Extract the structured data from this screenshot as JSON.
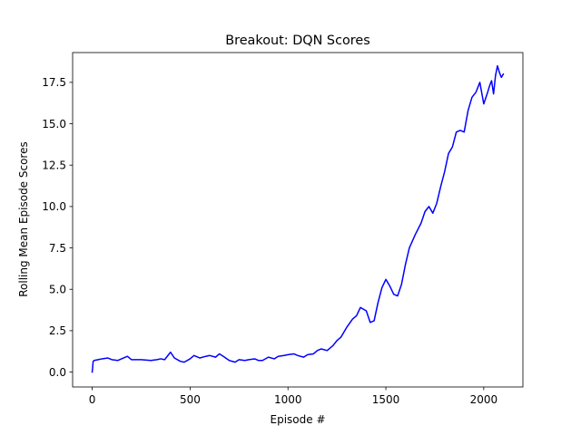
{
  "chart_data": {
    "type": "line",
    "title": "Breakout: DQN Scores",
    "xlabel": "Episode #",
    "ylabel": "Rolling Mean Episode Scores",
    "xlim": [
      -100,
      2200
    ],
    "ylim": [
      -0.9,
      19.3
    ],
    "xticks": [
      0,
      500,
      1000,
      1500,
      2000
    ],
    "yticks": [
      0.0,
      2.5,
      5.0,
      7.5,
      10.0,
      12.5,
      15.0,
      17.5
    ],
    "xtick_labels": [
      "0",
      "500",
      "1000",
      "1500",
      "2000"
    ],
    "ytick_labels": [
      "0.0",
      "2.5",
      "5.0",
      "7.5",
      "10.0",
      "12.5",
      "15.0",
      "17.5"
    ],
    "grid": false,
    "legend": "none",
    "series": [
      {
        "color": "#0000ff",
        "x": [
          0,
          5,
          10,
          30,
          50,
          80,
          100,
          130,
          150,
          180,
          200,
          250,
          300,
          330,
          350,
          370,
          400,
          420,
          450,
          470,
          500,
          520,
          550,
          580,
          600,
          630,
          650,
          670,
          700,
          730,
          750,
          780,
          800,
          830,
          850,
          870,
          900,
          930,
          950,
          980,
          1000,
          1030,
          1050,
          1080,
          1100,
          1130,
          1150,
          1170,
          1200,
          1230,
          1250,
          1270,
          1300,
          1330,
          1350,
          1370,
          1400,
          1420,
          1440,
          1460,
          1480,
          1500,
          1520,
          1540,
          1560,
          1580,
          1600,
          1620,
          1650,
          1680,
          1700,
          1720,
          1740,
          1760,
          1780,
          1800,
          1820,
          1840,
          1860,
          1880,
          1900,
          1920,
          1940,
          1960,
          1980,
          2000,
          2020,
          2030,
          2040,
          2050,
          2060,
          2070,
          2080,
          2090,
          2100
        ],
        "y": [
          0.0,
          0.65,
          0.7,
          0.75,
          0.8,
          0.85,
          0.75,
          0.7,
          0.8,
          0.95,
          0.75,
          0.75,
          0.7,
          0.75,
          0.8,
          0.75,
          1.2,
          0.85,
          0.65,
          0.6,
          0.8,
          1.0,
          0.85,
          0.95,
          1.0,
          0.9,
          1.1,
          0.95,
          0.7,
          0.6,
          0.75,
          0.7,
          0.75,
          0.8,
          0.7,
          0.7,
          0.9,
          0.8,
          0.95,
          1.0,
          1.05,
          1.1,
          1.0,
          0.9,
          1.05,
          1.1,
          1.3,
          1.4,
          1.3,
          1.6,
          1.9,
          2.1,
          2.7,
          3.2,
          3.4,
          3.9,
          3.7,
          3.0,
          3.1,
          4.2,
          5.1,
          5.6,
          5.2,
          4.7,
          4.6,
          5.3,
          6.5,
          7.5,
          8.3,
          9.0,
          9.7,
          10.0,
          9.6,
          10.2,
          11.2,
          12.1,
          13.2,
          13.6,
          14.5,
          14.6,
          14.5,
          15.8,
          16.6,
          16.9,
          17.5,
          16.2,
          16.9,
          17.3,
          17.6,
          16.8,
          17.9,
          18.5,
          18.1,
          17.8,
          18.0
        ]
      }
    ]
  }
}
